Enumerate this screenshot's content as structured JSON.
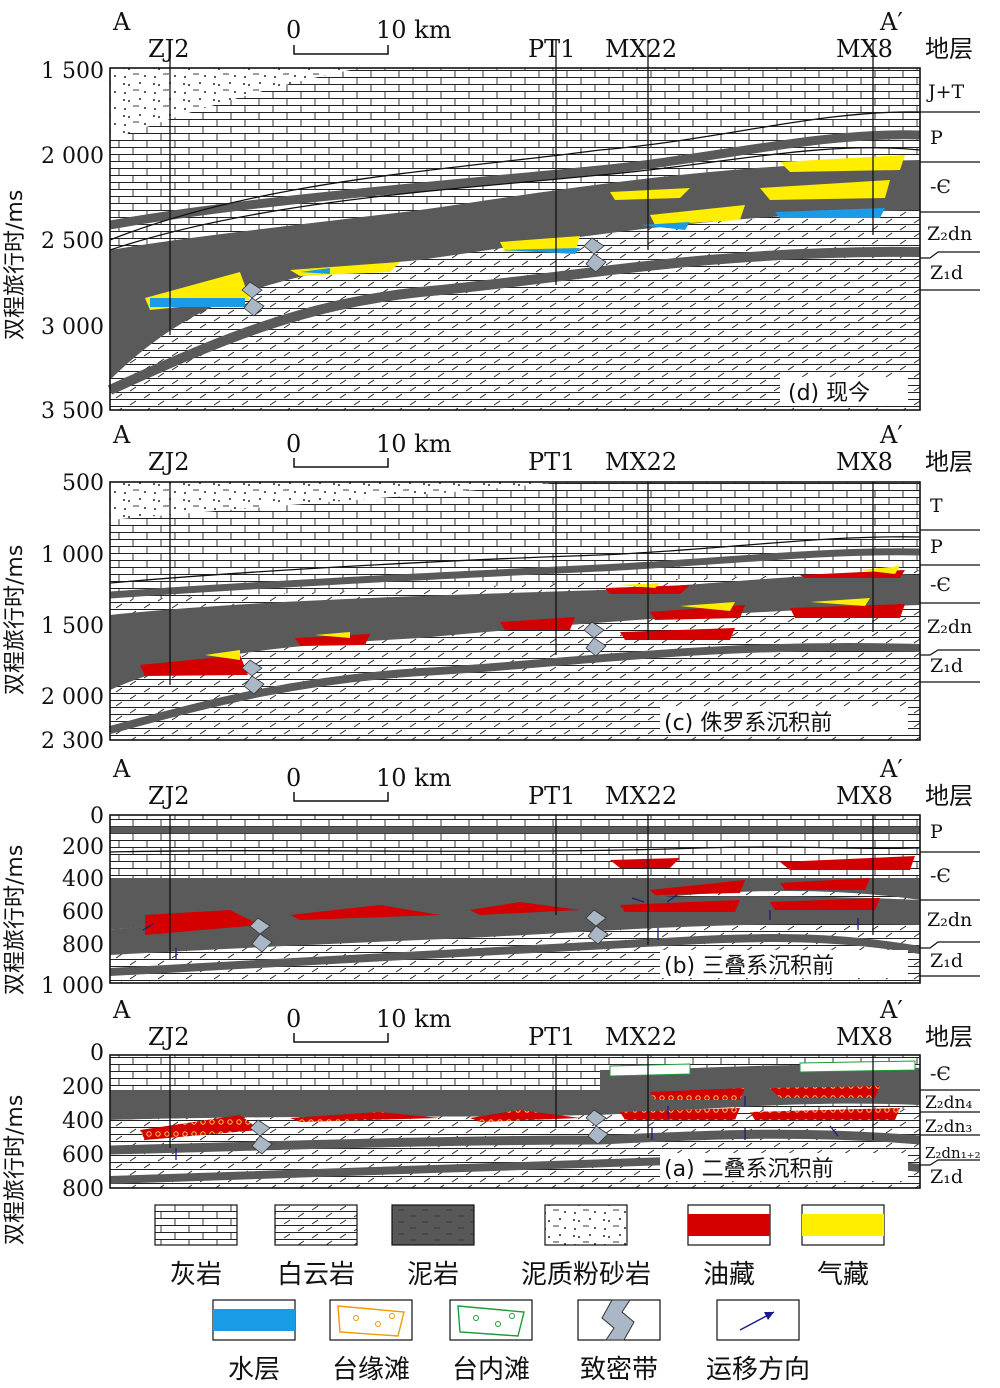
{
  "scale": {
    "zero": "0",
    "ten": "10 km"
  },
  "wells": [
    "ZJ2",
    "PT1",
    "MX22",
    "MX8"
  ],
  "ends": {
    "left": "A",
    "right": "A′"
  },
  "strata_header": "地层",
  "y_axis_label": "双程旅行时/ms",
  "panels": [
    {
      "id": "d",
      "caption": "(d) 现今",
      "ticks": [
        "1 500",
        "2 000",
        "2 500",
        "3 000",
        "3 500"
      ],
      "strata": [
        "J+T",
        "P",
        "-Є",
        "Z₂dn",
        "Z₁d"
      ]
    },
    {
      "id": "c",
      "caption": "(c) 侏罗系沉积前",
      "ticks": [
        "500",
        "1 000",
        "1 500",
        "2 000",
        "2 300"
      ],
      "strata": [
        "T",
        "P",
        "-Є",
        "Z₂dn",
        "Z₁d"
      ]
    },
    {
      "id": "b",
      "caption": "(b) 三叠系沉积前",
      "ticks": [
        "0",
        "200",
        "400",
        "600",
        "800",
        "1 000"
      ],
      "strata": [
        "P",
        "-Є",
        "Z₂dn",
        "Z₁d"
      ]
    },
    {
      "id": "a",
      "caption": "(a) 二叠系沉积前",
      "ticks": [
        "0",
        "200",
        "400",
        "600",
        "800"
      ],
      "strata": [
        "-Є",
        "Z₂dn₄",
        "Z₂dn₃",
        "Z₂dn₁₊₂",
        "Z₁d"
      ]
    }
  ],
  "legend": [
    {
      "label": "灰岩",
      "key": "limestone"
    },
    {
      "label": "白云岩",
      "key": "dolomite"
    },
    {
      "label": "泥岩",
      "key": "mudstone"
    },
    {
      "label": "泥质粉砂岩",
      "key": "siltstone"
    },
    {
      "label": "油藏",
      "key": "oil",
      "color": "#d40000"
    },
    {
      "label": "气藏",
      "key": "gas",
      "color": "#ffee00"
    },
    {
      "label": "水层",
      "key": "water",
      "color": "#1a9be6"
    },
    {
      "label": "台缘滩",
      "key": "margin-shoal",
      "color": "#f29a00"
    },
    {
      "label": "台内滩",
      "key": "inner-shoal",
      "color": "#1f9a3a"
    },
    {
      "label": "致密带",
      "key": "tight-zone",
      "color": "#a9b7c6"
    },
    {
      "label": "运移方向",
      "key": "migration",
      "color": "#1a1a8a"
    }
  ],
  "colors": {
    "mud": "#555555",
    "oil": "#d40000",
    "gas": "#ffee00",
    "water": "#1a9be6"
  }
}
